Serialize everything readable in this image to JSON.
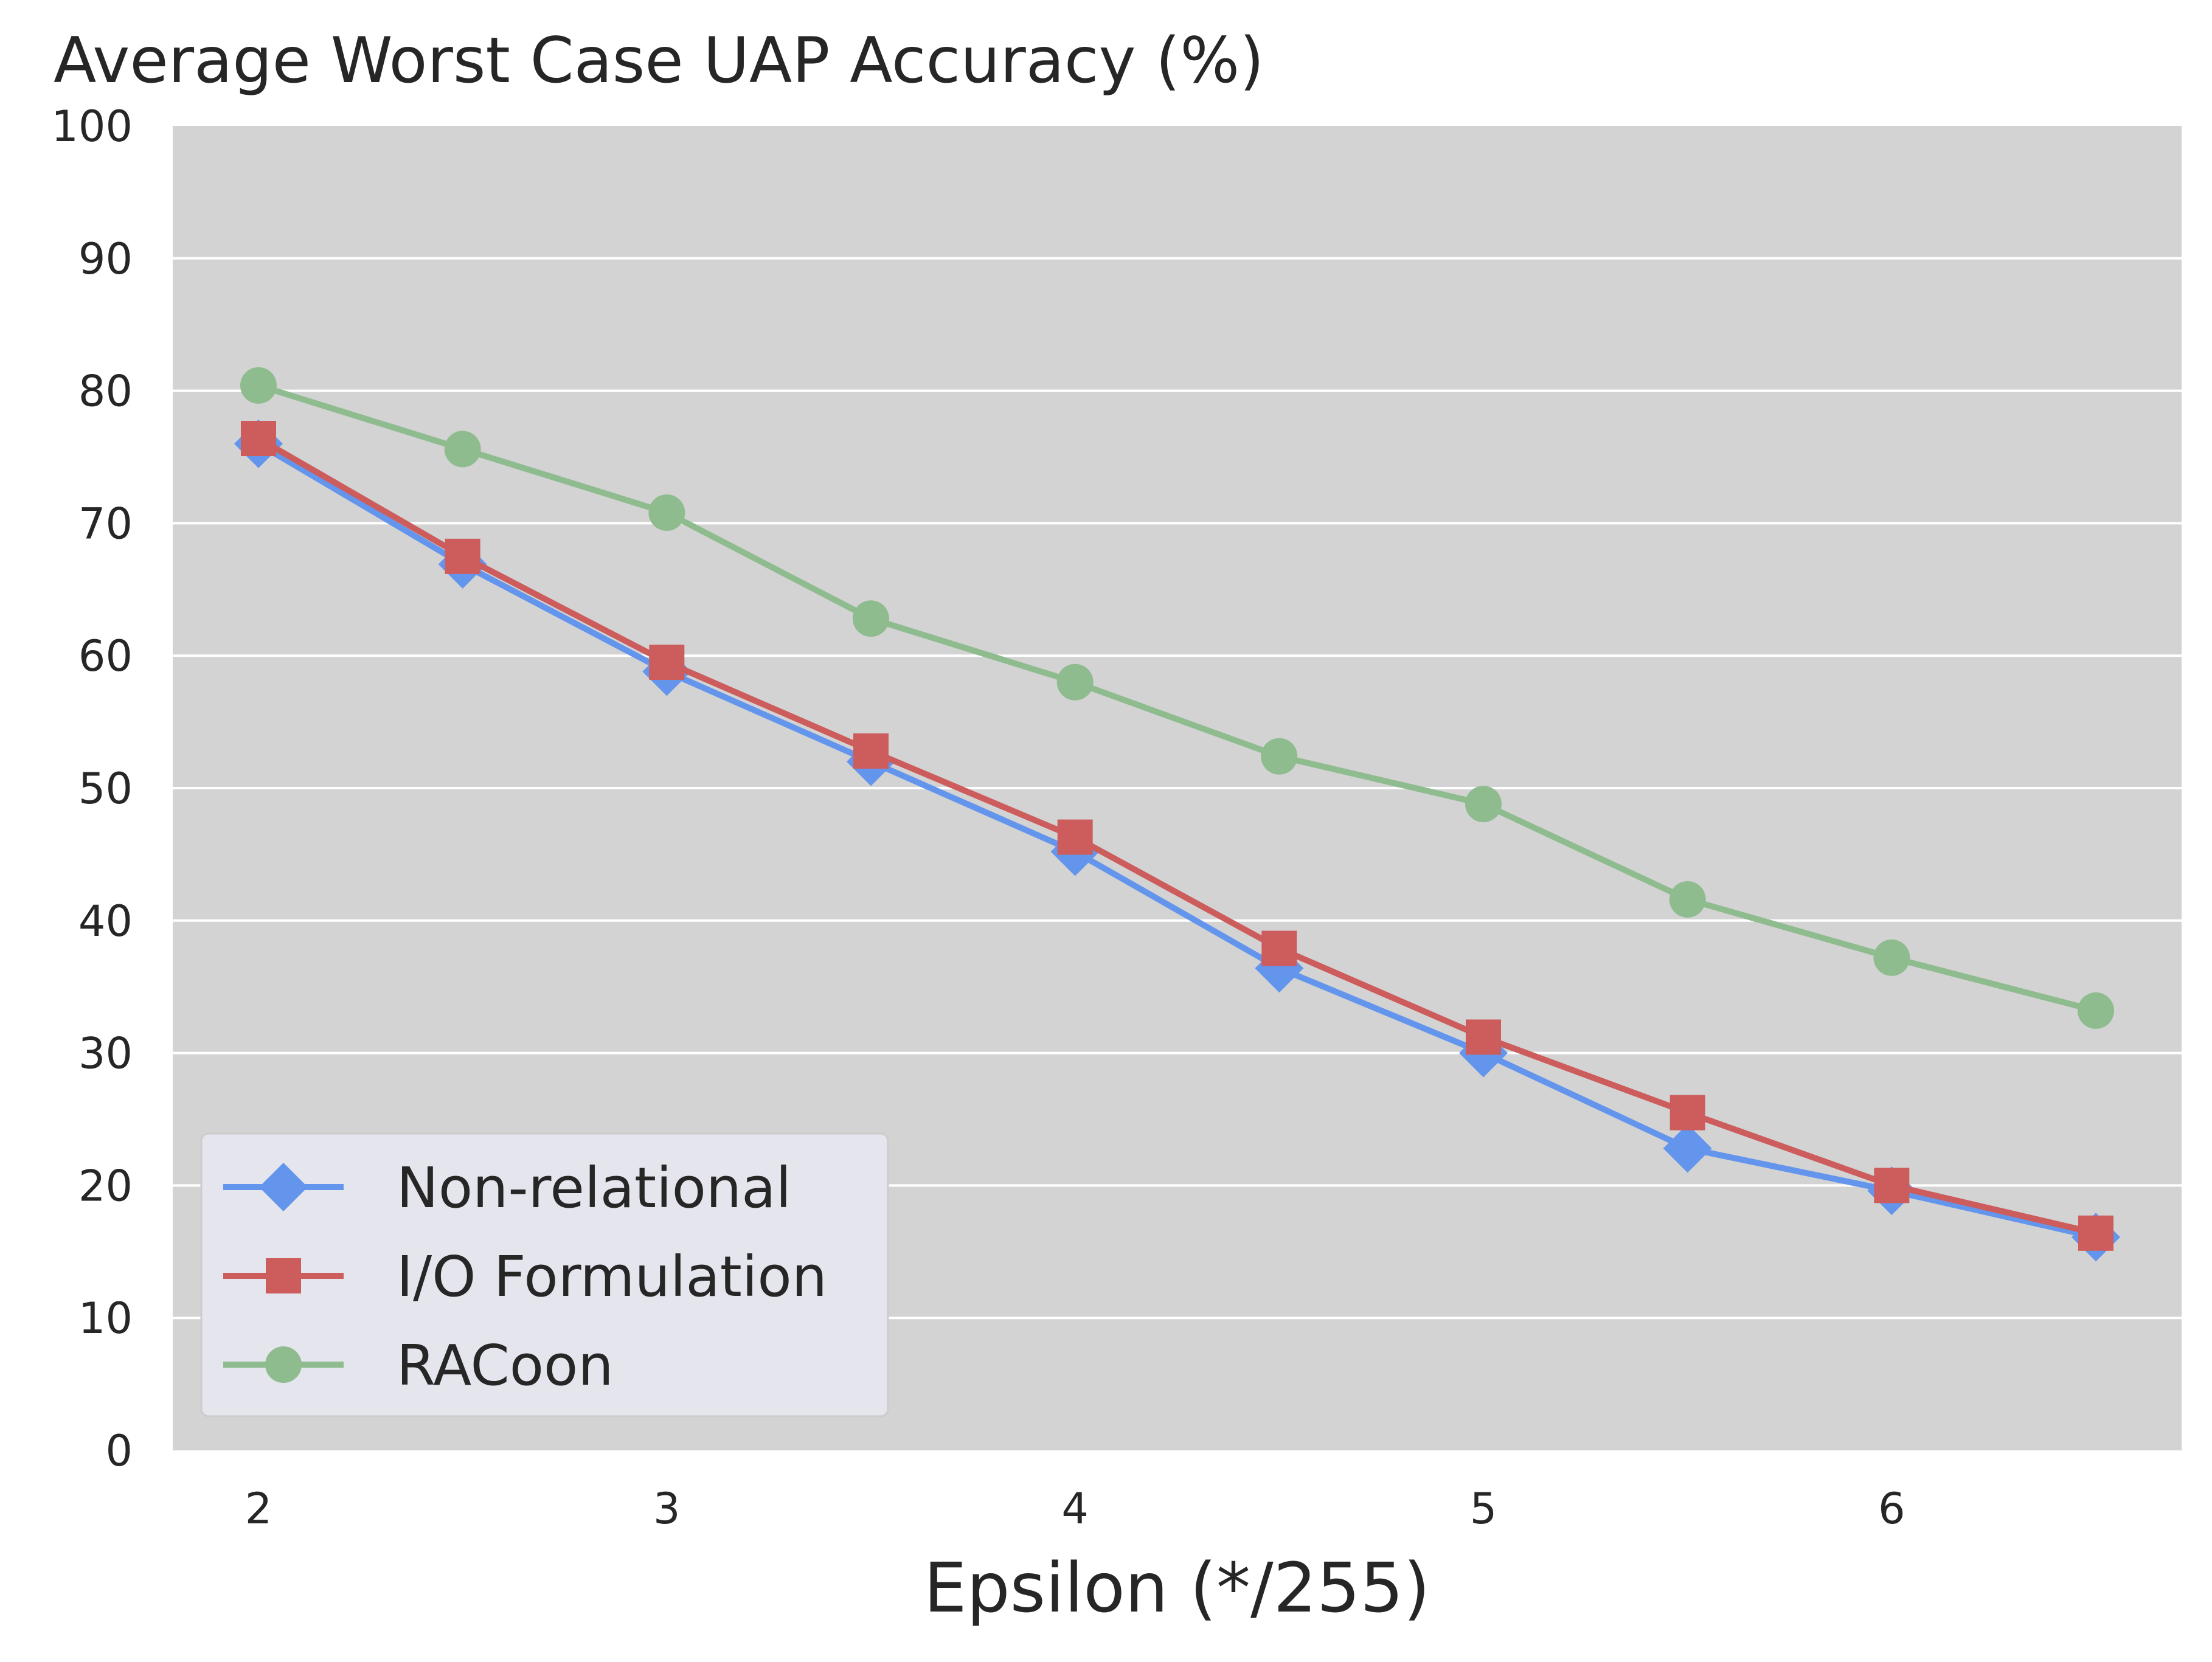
{
  "chart_data": {
    "type": "line",
    "title": "Average Worst Case UAP Accuracy (%)",
    "xlabel": "Epsilon (*/255)",
    "ylabel": "",
    "xlim": [
      1.79,
      6.71
    ],
    "ylim": [
      0,
      100
    ],
    "x_ticks": [
      "2",
      "3",
      "4",
      "5",
      "6"
    ],
    "x_tick_values": [
      2,
      3,
      4,
      5,
      6
    ],
    "y_ticks": [
      "0",
      "10",
      "20",
      "30",
      "40",
      "50",
      "60",
      "70",
      "80",
      "90",
      "100"
    ],
    "y_tick_values": [
      0,
      10,
      20,
      30,
      40,
      50,
      60,
      70,
      80,
      90,
      100
    ],
    "grid": true,
    "legend_position": "lower-left",
    "x": [
      2,
      2.5,
      3,
      3.5,
      4,
      4.5,
      5,
      5.5,
      6,
      6.5
    ],
    "series": [
      {
        "name": "Non-relational",
        "marker": "diamond",
        "color": "#6495ED",
        "values": [
          76.0,
          66.9,
          58.8,
          52.0,
          45.2,
          36.4,
          30.0,
          22.8,
          19.6,
          16.1
        ]
      },
      {
        "name": "I/O Formulation",
        "marker": "square",
        "color": "#CD5C5C",
        "values": [
          76.4,
          67.5,
          59.5,
          52.8,
          46.3,
          37.9,
          31.2,
          25.5,
          20.0,
          16.4
        ]
      },
      {
        "name": "RACoon",
        "marker": "circle",
        "color": "#8FBC8F",
        "values": [
          80.4,
          75.6,
          70.8,
          62.8,
          58.0,
          52.4,
          48.8,
          41.6,
          37.2,
          33.2
        ]
      }
    ]
  }
}
